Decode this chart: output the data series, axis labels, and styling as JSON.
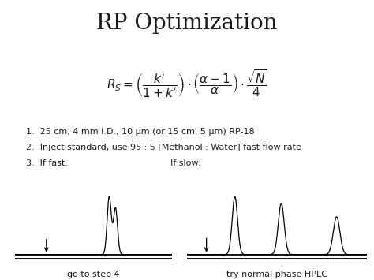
{
  "title": "RP Optimization",
  "bullet1": "1.  25 cm, 4 mm I.D., 10 μm (or 15 cm, 5 μm) RP-18",
  "bullet2": "2.  Inject standard, use 95 : 5 [Methanol : Water] fast flow rate",
  "bullet3_left": "3.  If fast:",
  "bullet3_right": "If slow:",
  "caption_left": "go to step 4",
  "caption_right": "try normal phase HPLC",
  "bg_color": "#ffffff",
  "text_color": "#1a1a1a",
  "title_fontsize": 20,
  "bullet_fontsize": 8.0,
  "caption_fontsize": 8.0,
  "formula_fontsize": 11
}
